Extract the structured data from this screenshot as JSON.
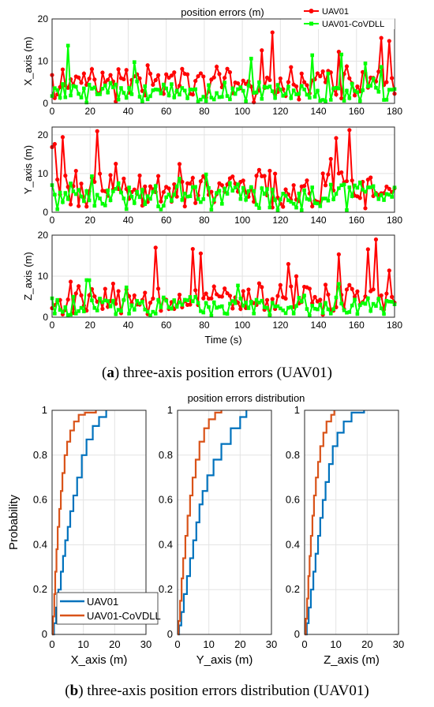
{
  "figure_a": {
    "caption_prefix": "a",
    "caption_text": "three-axis position errors (UAV01)",
    "title": "position errors (m)",
    "legend": [
      "UAV01",
      "UAV01-CoVDLL"
    ],
    "xlabel": "Time (s)"
  },
  "figure_b": {
    "caption_prefix": "b",
    "caption_text": "three-axis position errors distribution (UAV01)",
    "title": "position errors distribution",
    "ylabel": "Probability",
    "legend": [
      "UAV01",
      "UAV01-CoVDLL"
    ]
  },
  "colors": {
    "uav01_a": "#ff0000",
    "covdll_a": "#00ff00",
    "uav01_b": "#0072bd",
    "covdll_b": "#d95319"
  },
  "chart_data": [
    {
      "type": "line",
      "ylabel": "X_axis (m)",
      "xlim": [
        0,
        180
      ],
      "ylim": [
        0,
        20
      ],
      "xticks": [
        0,
        20,
        40,
        60,
        80,
        100,
        120,
        140,
        160,
        180
      ],
      "yticks": [
        0,
        10,
        20
      ],
      "grid": true,
      "legend_position": "top-right",
      "series": [
        {
          "name": "UAV01",
          "stats": {
            "mean": 4.5,
            "max": 17.3
          }
        },
        {
          "name": "UAV01-CoVDLL",
          "stats": {
            "mean": 2.6,
            "max": 14.0
          }
        }
      ]
    },
    {
      "type": "line",
      "ylabel": "Y_axis (m)",
      "xlim": [
        0,
        180
      ],
      "ylim": [
        0,
        22
      ],
      "xticks": [
        0,
        20,
        40,
        60,
        80,
        100,
        120,
        140,
        160,
        180
      ],
      "yticks": [
        0,
        10,
        20
      ],
      "grid": true,
      "series": [
        {
          "name": "UAV01",
          "stats": {
            "mean": 5.5,
            "max": 21.8
          }
        },
        {
          "name": "UAV01-CoVDLL",
          "stats": {
            "mean": 3.8,
            "max": 14.5
          }
        }
      ]
    },
    {
      "type": "line",
      "ylabel": "Z_axis (m)",
      "xlabel": "Time (s)",
      "xlim": [
        0,
        180
      ],
      "ylim": [
        0,
        20
      ],
      "xticks": [
        0,
        20,
        40,
        60,
        80,
        100,
        120,
        140,
        160,
        180
      ],
      "yticks": [
        0,
        10,
        20
      ],
      "grid": true,
      "series": [
        {
          "name": "UAV01",
          "stats": {
            "mean": 4.2,
            "max": 19.0
          }
        },
        {
          "name": "UAV01-CoVDLL",
          "stats": {
            "mean": 2.6,
            "max": 9.5
          }
        }
      ]
    },
    {
      "type": "line",
      "xlabel": "X_axis (m)",
      "ylabel": "Probability",
      "xlim": [
        0,
        30
      ],
      "ylim": [
        0,
        1
      ],
      "xticks": [
        0,
        10,
        20,
        30
      ],
      "yticks": [
        0,
        0.2,
        0.4,
        0.6,
        0.8,
        1
      ],
      "grid": true,
      "legend_position": "bottom-right",
      "series": [
        {
          "name": "UAV01",
          "x": [
            0,
            0.6,
            1.3,
            2.0,
            2.8,
            3.5,
            4.2,
            5.0,
            5.8,
            6.8,
            8.0,
            9.5,
            11.0,
            13.0,
            15.0,
            17.3
          ],
          "y": [
            0,
            0.05,
            0.12,
            0.2,
            0.28,
            0.35,
            0.42,
            0.48,
            0.55,
            0.62,
            0.7,
            0.8,
            0.87,
            0.93,
            0.97,
            1
          ]
        },
        {
          "name": "UAV01-CoVDLL",
          "x": [
            0,
            0.3,
            0.7,
            1.0,
            1.4,
            1.8,
            2.3,
            2.8,
            3.3,
            4.0,
            4.8,
            5.8,
            7.0,
            8.5,
            10.5,
            14.0
          ],
          "y": [
            0,
            0.08,
            0.18,
            0.28,
            0.38,
            0.48,
            0.56,
            0.64,
            0.72,
            0.8,
            0.86,
            0.91,
            0.95,
            0.98,
            0.99,
            1
          ]
        }
      ]
    },
    {
      "type": "line",
      "xlabel": "Y_axis (m)",
      "xlim": [
        0,
        30
      ],
      "ylim": [
        0,
        1
      ],
      "xticks": [
        0,
        10,
        20,
        30
      ],
      "yticks": [
        0,
        0.2,
        0.4,
        0.6,
        0.8,
        1
      ],
      "grid": true,
      "series": [
        {
          "name": "UAV01",
          "x": [
            0,
            0.5,
            1.2,
            2.0,
            3.0,
            4.0,
            5.0,
            6.0,
            7.0,
            8.0,
            9.5,
            11.5,
            14.0,
            17.0,
            20.0,
            22.0
          ],
          "y": [
            0,
            0.04,
            0.1,
            0.18,
            0.26,
            0.34,
            0.42,
            0.5,
            0.58,
            0.64,
            0.71,
            0.78,
            0.85,
            0.92,
            0.97,
            1
          ]
        },
        {
          "name": "UAV01-CoVDLL",
          "x": [
            0,
            0.3,
            0.8,
            1.3,
            1.8,
            2.5,
            3.2,
            4.0,
            4.8,
            5.8,
            7.0,
            8.5,
            10.0,
            12.0,
            14.0
          ],
          "y": [
            0,
            0.06,
            0.15,
            0.25,
            0.34,
            0.44,
            0.53,
            0.62,
            0.7,
            0.78,
            0.86,
            0.92,
            0.96,
            0.99,
            1
          ]
        }
      ]
    },
    {
      "type": "line",
      "xlabel": "Z_axis (m)",
      "xlim": [
        0,
        30
      ],
      "ylim": [
        0,
        1
      ],
      "xticks": [
        0,
        10,
        20,
        30
      ],
      "yticks": [
        0,
        0.2,
        0.4,
        0.6,
        0.8,
        1
      ],
      "grid": true,
      "series": [
        {
          "name": "UAV01",
          "x": [
            0,
            0.7,
            1.3,
            2.0,
            2.8,
            3.5,
            4.3,
            5.0,
            5.8,
            6.7,
            7.8,
            9.0,
            10.5,
            12.5,
            15.0,
            19.0
          ],
          "y": [
            0,
            0.05,
            0.12,
            0.2,
            0.28,
            0.36,
            0.44,
            0.52,
            0.6,
            0.68,
            0.76,
            0.84,
            0.9,
            0.95,
            0.99,
            1
          ]
        },
        {
          "name": "UAV01-CoVDLL",
          "x": [
            0,
            0.4,
            0.8,
            1.2,
            1.6,
            2.0,
            2.5,
            3.0,
            3.6,
            4.3,
            5.0,
            6.0,
            7.0,
            8.5,
            9.5
          ],
          "y": [
            0,
            0.07,
            0.16,
            0.26,
            0.35,
            0.44,
            0.53,
            0.62,
            0.7,
            0.77,
            0.84,
            0.9,
            0.95,
            0.98,
            1
          ]
        }
      ]
    }
  ]
}
